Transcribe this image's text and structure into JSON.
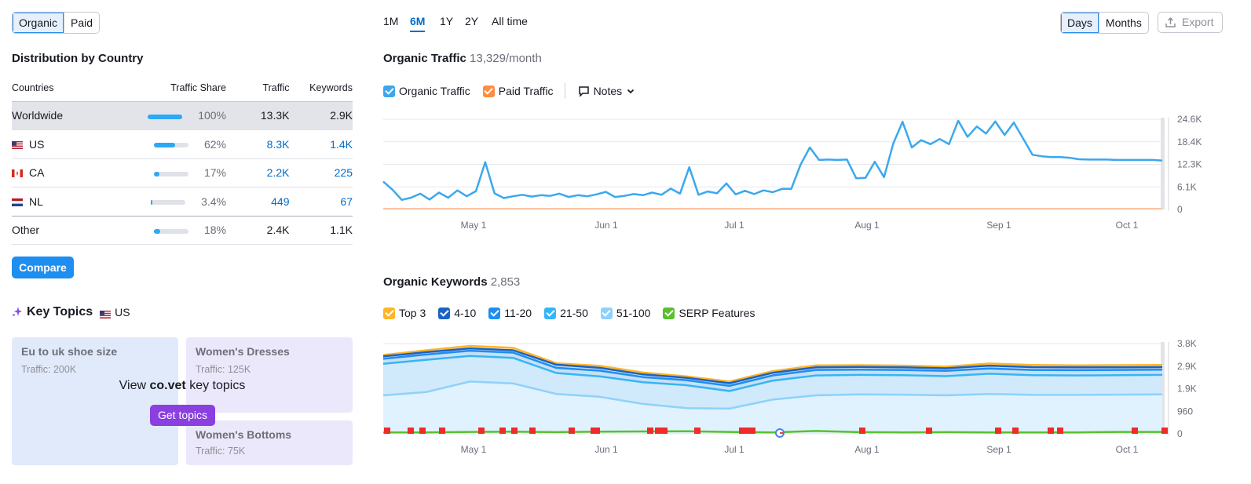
{
  "source_toggle": {
    "organic": "Organic",
    "paid": "Paid"
  },
  "distribution": {
    "title": "Distribution by Country",
    "headers": {
      "countries": "Countries",
      "share": "Traffic Share",
      "traffic": "Traffic",
      "keywords": "Keywords"
    },
    "rows": [
      {
        "name": "Worldwide",
        "share": "100%",
        "share_value": 1.0,
        "traffic": "13.3K",
        "keywords": "2.9K"
      },
      {
        "name": "US",
        "share": "62%",
        "share_value": 0.62,
        "traffic": "8.3K",
        "keywords": "1.4K"
      },
      {
        "name": "CA",
        "share": "17%",
        "share_value": 0.17,
        "traffic": "2.2K",
        "keywords": "225"
      },
      {
        "name": "NL",
        "share": "3.4%",
        "share_value": 0.034,
        "traffic": "449",
        "keywords": "67"
      },
      {
        "name": "Other",
        "share": "18%",
        "share_value": 0.18,
        "traffic": "2.4K",
        "keywords": "1.1K"
      }
    ],
    "compare_label": "Compare"
  },
  "key_topics": {
    "title": "Key Topics",
    "country": "US",
    "cards": [
      {
        "name": "Eu to uk shoe size",
        "traffic": "Traffic: 200K"
      },
      {
        "name": "Women's Dresses",
        "traffic": "Traffic: 125K"
      },
      {
        "name": "Women's Bottoms",
        "traffic": "Traffic: 75K"
      }
    ],
    "overlay_prefix": "View",
    "overlay_domain": "co.vet",
    "overlay_suffix": "key topics",
    "get_topics_label": "Get topics"
  },
  "periods": [
    "1M",
    "6M",
    "1Y",
    "2Y",
    "All time"
  ],
  "active_period": "6M",
  "granularity": {
    "days": "Days",
    "months": "Months"
  },
  "export_label": "Export",
  "organic_traffic": {
    "title": "Organic Traffic",
    "value": "13,329/month",
    "legend": {
      "organic": "Organic Traffic",
      "paid": "Paid Traffic",
      "notes": "Notes"
    }
  },
  "organic_keywords": {
    "title": "Organic Keywords",
    "value": "2,853",
    "legend": [
      "Top 3",
      "4-10",
      "11-20",
      "21-50",
      "51-100",
      "SERP Features"
    ]
  },
  "colors": {
    "accent": "#006dca",
    "organic": "#3ba8ee",
    "paid": "#ff8c43",
    "top3": "#ffb526",
    "k4_10": "#1b62c4",
    "k11_20": "#1e8ef0",
    "k21_50": "#35b5f5",
    "k51_100": "#8fd1fa",
    "serp": "#59c12d"
  },
  "chart_data": [
    {
      "type": "line",
      "title": "Organic Traffic",
      "x_ticks": [
        "May 1",
        "Jun 1",
        "Jul 1",
        "Aug 1",
        "Sep 1",
        "Oct 1"
      ],
      "y_ticks": [
        "24.6K",
        "18.4K",
        "12.3K",
        "6.1K",
        "0"
      ],
      "ylim": [
        0,
        24600
      ],
      "series": [
        {
          "name": "Organic Traffic",
          "values": [
            7600,
            5400,
            2600,
            3200,
            4300,
            2700,
            4600,
            3200,
            5200,
            3600,
            5000,
            12900,
            4400,
            3100,
            3600,
            4000,
            3500,
            3900,
            3700,
            4300,
            3400,
            3900,
            3600,
            4100,
            4800,
            3400,
            3700,
            4200,
            3900,
            4600,
            4000,
            5700,
            4300,
            11500,
            4000,
            4900,
            4400,
            7100,
            4100,
            5100,
            4200,
            5200,
            4700,
            5600,
            5600,
            12200,
            16900,
            13500,
            13600,
            13500,
            13600,
            8500,
            8600,
            13000,
            8800,
            18000,
            23900,
            16900,
            18900,
            17800,
            19200,
            17800,
            24200,
            19800,
            22600,
            20700,
            24000,
            20300,
            23700,
            19300,
            14900,
            14500,
            14300,
            14300,
            14100,
            13700,
            13600,
            13600,
            13600,
            13500,
            13500,
            13500,
            13500,
            13500,
            13300
          ]
        },
        {
          "name": "Paid Traffic",
          "values": [
            0,
            0,
            0,
            0,
            0,
            0
          ]
        }
      ]
    },
    {
      "type": "area",
      "title": "Organic Keywords",
      "x_ticks": [
        "May 1",
        "Jun 1",
        "Jul 1",
        "Aug 1",
        "Sep 1",
        "Oct 1"
      ],
      "y_ticks": [
        "3.8K",
        "2.9K",
        "1.9K",
        "960",
        "0"
      ],
      "ylim": [
        0,
        3800
      ],
      "series": [
        {
          "name": "Top 3",
          "values": [
            3320,
            3520,
            3700,
            3620,
            2970,
            2860,
            2580,
            2420,
            2200,
            2640,
            2880,
            2890,
            2870,
            2830,
            2960,
            2900,
            2880,
            2890,
            2900
          ]
        },
        {
          "name": "4-10",
          "values": [
            3260,
            3440,
            3600,
            3520,
            2910,
            2780,
            2500,
            2360,
            2130,
            2570,
            2800,
            2820,
            2800,
            2760,
            2870,
            2810,
            2800,
            2800,
            2810
          ]
        },
        {
          "name": "11-20",
          "values": [
            3160,
            3340,
            3500,
            3420,
            2780,
            2660,
            2390,
            2260,
            2020,
            2460,
            2690,
            2700,
            2690,
            2650,
            2750,
            2690,
            2680,
            2690,
            2700
          ]
        },
        {
          "name": "21-50",
          "values": [
            2950,
            3120,
            3280,
            3200,
            2560,
            2420,
            2170,
            2050,
            1800,
            2240,
            2460,
            2480,
            2470,
            2430,
            2530,
            2470,
            2460,
            2470,
            2480
          ]
        },
        {
          "name": "51-100",
          "values": [
            1620,
            1760,
            2200,
            2120,
            1680,
            1560,
            1260,
            1080,
            1060,
            1440,
            1620,
            1660,
            1650,
            1620,
            1680,
            1640,
            1640,
            1650,
            1660
          ]
        },
        {
          "name": "SERP Features",
          "values": [
            60,
            60,
            80,
            90,
            70,
            90,
            100,
            110,
            80,
            60,
            120,
            70,
            60,
            70,
            60,
            60,
            60,
            80,
            80
          ]
        }
      ]
    }
  ]
}
